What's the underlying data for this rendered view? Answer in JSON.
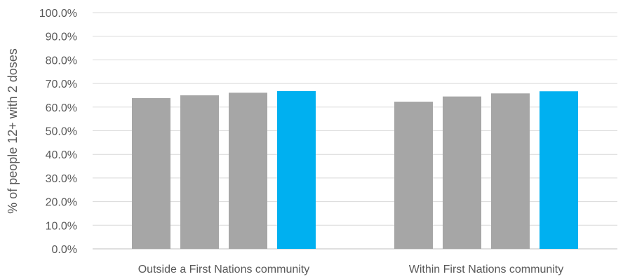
{
  "chart_data": {
    "type": "bar",
    "title": "",
    "xlabel": "",
    "ylabel": "% of people 12+ with 2 doses",
    "ylim": [
      0,
      100
    ],
    "yticks": [
      "0.0%",
      "10.0%",
      "20.0%",
      "30.0%",
      "40.0%",
      "50.0%",
      "60.0%",
      "70.0%",
      "80.0%",
      "90.0%",
      "100.0%"
    ],
    "grid": true,
    "legend": "none",
    "categories": [
      "Outside a First Nations community",
      "Within First Nations community"
    ],
    "series": [
      {
        "values": [
          63.8,
          62.3
        ],
        "color": "#a6a6a6"
      },
      {
        "values": [
          65.0,
          64.5
        ],
        "color": "#a6a6a6"
      },
      {
        "values": [
          66.1,
          65.8
        ],
        "color": "#a6a6a6"
      },
      {
        "values": [
          66.8,
          66.7
        ],
        "color": "#00b0f0"
      }
    ]
  }
}
